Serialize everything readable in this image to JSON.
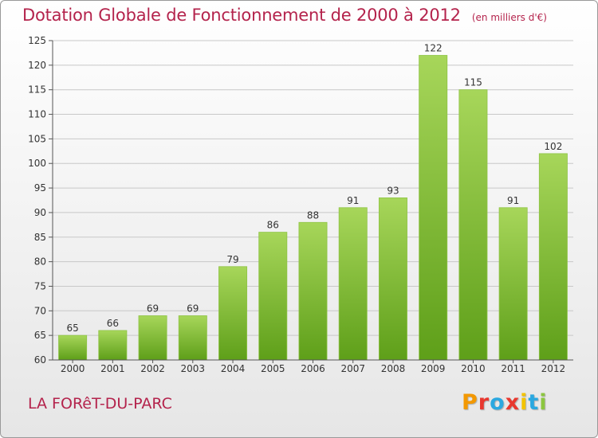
{
  "title": "Dotation Globale de Fonctionnement de 2000 à 2012",
  "subtitle": "(en milliers d'€)",
  "commune": "LA FORêT-DU-PARC",
  "brand": "Proxiti",
  "brand_colors": [
    "#f39800",
    "#e8382f",
    "#2ba8e0",
    "#e8382f",
    "#f3c300",
    "#2ba8e0",
    "#8cc63f"
  ],
  "colors": {
    "title": "#b4234c",
    "bar_top": "#a7d65a",
    "bar_bottom": "#5e9f19"
  },
  "chart_data": {
    "type": "bar",
    "categories": [
      "2000",
      "2001",
      "2002",
      "2003",
      "2004",
      "2005",
      "2006",
      "2007",
      "2008",
      "2009",
      "2010",
      "2011",
      "2012"
    ],
    "values": [
      65,
      66,
      69,
      69,
      79,
      86,
      88,
      91,
      93,
      122,
      115,
      91,
      102
    ],
    "ylim": [
      60,
      125
    ],
    "yticks": [
      60,
      65,
      70,
      75,
      80,
      85,
      90,
      95,
      100,
      105,
      110,
      115,
      120,
      125
    ],
    "grid": true,
    "xlabel": "",
    "ylabel": ""
  }
}
